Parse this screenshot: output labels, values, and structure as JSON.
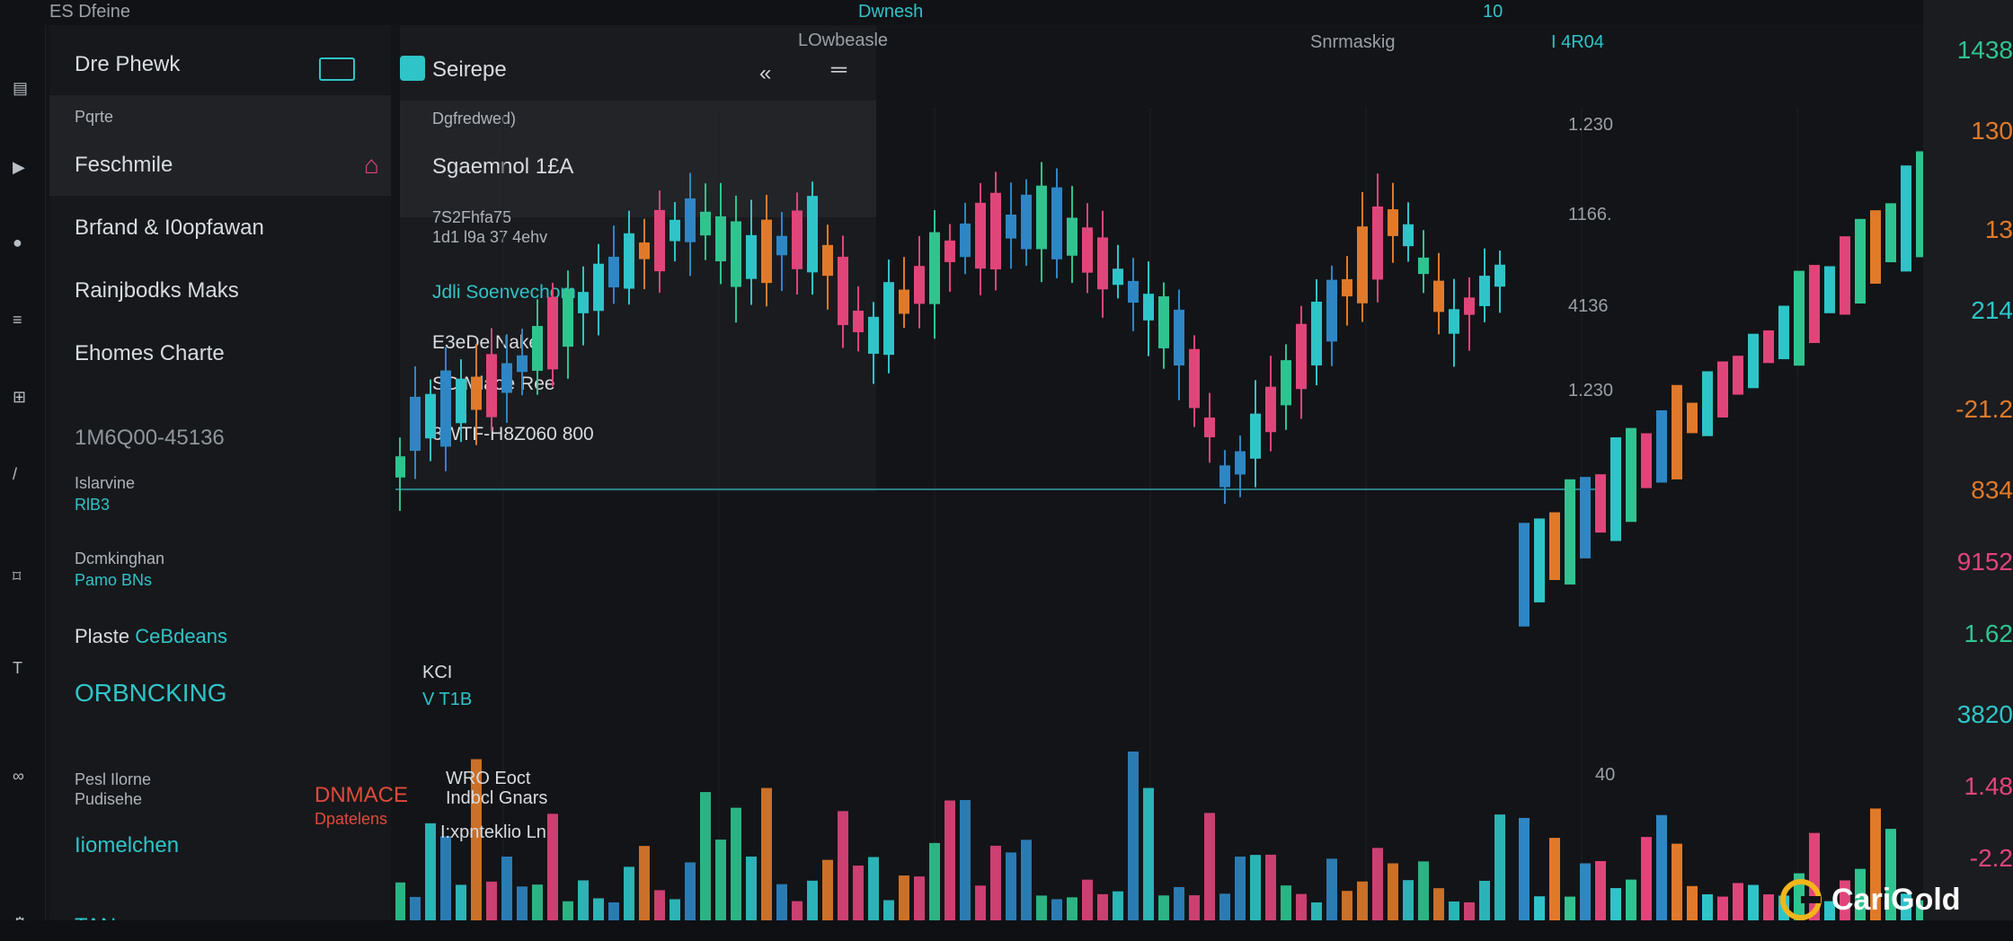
{
  "topbar": {
    "title": "ES Dfeine",
    "center_text": "Dwnesh",
    "right_text": "10"
  },
  "panel1": {
    "header": "Dre Phewk",
    "section_label": "Pqrte",
    "items": [
      "Feschmile",
      "Brfand & I0opfawan",
      "Rainjbodks Maks",
      "Ehomes Charte"
    ],
    "stat_line": "1M6Q00-45136",
    "labels": [
      {
        "top": "Islarvine",
        "bottom": "RlB3"
      },
      {
        "top": "Dcmkinghan",
        "bottom": "Pamo BNs"
      }
    ],
    "plaste": "Plaste",
    "plaste_teal": "CeBdeans",
    "big_teal": "ORBNCKING",
    "bottom_block": {
      "l1": "Pesl Ilorne",
      "l2": "Pudisehe",
      "red1": "DNMACE",
      "red2": "Dpatelens",
      "teal": "Iiomelchen",
      "tan": "TAN"
    }
  },
  "panel2": {
    "tab_label": "Seirepe",
    "section": "Dgfredwed)",
    "highlight": "Sgaemnol 1£A",
    "sub1": "7S2Fhfa75",
    "sub2": "1d1 l9a 37 4ehv",
    "teal_item": "Jdli Soenvechom",
    "item2": "E3eDe Nake",
    "item3": "SC Mlaoe Ree",
    "item4": "3WTF-H8Z060 800"
  },
  "overlay": {
    "l1": "WRO Eoct",
    "l2": "Indbcl Gnars",
    "l3": "I:xpnteklio Ln"
  },
  "chart_header": {
    "left": "LOwbeasle",
    "mid": "Snrmaskig",
    "dot": "I 4R04"
  },
  "marker": {
    "l1": "KCI",
    "l2": "V T1B"
  },
  "y_axis": [
    "1.230",
    "1166.",
    "4136",
    "1.230",
    "40"
  ],
  "right_prices": [
    {
      "text": "1438",
      "color": "#2fc48f"
    },
    {
      "text": "130",
      "color": "#e07a2a"
    },
    {
      "text": "13",
      "color": "#e07a2a"
    },
    {
      "text": "214",
      "color": "#2fc4c8"
    },
    {
      "text": "-21.2",
      "color": "#e07a2a"
    },
    {
      "text": "834",
      "color": "#e07a2a"
    },
    {
      "text": "9152",
      "color": "#e0457a"
    },
    {
      "text": "1.62",
      "color": "#2fc48f"
    },
    {
      "text": "3820",
      "color": "#2fc4c8"
    },
    {
      "text": "1.48",
      "color": "#e0457a"
    },
    {
      "text": "-2.2",
      "color": "#e0457a"
    }
  ],
  "colors": {
    "up": "#2fc4c8",
    "down": "#e0457a",
    "blue": "#2f86c4",
    "orange": "#e07a2a",
    "green": "#2fc48f",
    "background": "#131417"
  },
  "logo": {
    "text": "CariGold"
  },
  "chart_data": {
    "type": "candlestick",
    "candles": [
      [
        1,
        1,
        0
      ],
      [
        2,
        1,
        0
      ],
      [
        3,
        1,
        0
      ],
      [
        4,
        1,
        0
      ],
      [
        5,
        1,
        0
      ],
      [
        6,
        1,
        0
      ],
      [
        7,
        1,
        0
      ],
      [
        8,
        1,
        0
      ],
      [
        9,
        1,
        0
      ],
      [
        10,
        1,
        0
      ]
    ],
    "volume": []
  }
}
